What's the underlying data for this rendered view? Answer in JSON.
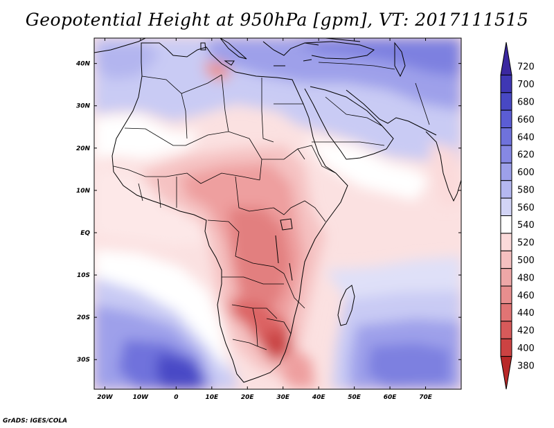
{
  "header": {
    "title": "Geopotential Height at 950hPa [gpm], VT: 2017111515"
  },
  "footer": {
    "credit": "GrADS: IGES/COLA"
  },
  "map": {
    "projection": "lat-lon",
    "lon_range": [
      -23,
      80
    ],
    "lat_range": [
      -37,
      46
    ],
    "lon_ticks": [
      "20W",
      "10W",
      "0",
      "10E",
      "20E",
      "30E",
      "40E",
      "50E",
      "60E",
      "70E"
    ],
    "lon_tick_values": [
      -20,
      -10,
      0,
      10,
      20,
      30,
      40,
      50,
      60,
      70
    ],
    "lat_ticks": [
      "40N",
      "30N",
      "20N",
      "10N",
      "EQ",
      "10S",
      "20S",
      "30S"
    ],
    "lat_tick_values": [
      40,
      30,
      20,
      10,
      0,
      -10,
      -20,
      -30
    ]
  },
  "colorbar": {
    "unit": "gpm",
    "levels": [
      "720",
      "700",
      "680",
      "660",
      "640",
      "620",
      "600",
      "580",
      "560",
      "540",
      "520",
      "500",
      "480",
      "460",
      "440",
      "420",
      "400",
      "380"
    ],
    "colors": [
      "#3b28a0",
      "#3f37b4",
      "#4848c4",
      "#5b5dd4",
      "#6f72dc",
      "#8688e4",
      "#9da0ea",
      "#b5b8f0",
      "#d2d4f6",
      "#ffffff",
      "#fbdada",
      "#f5c0c0",
      "#eea7a7",
      "#e88e8e",
      "#e17474",
      "#d85a5a",
      "#cc4242",
      "#b82828"
    ]
  }
}
